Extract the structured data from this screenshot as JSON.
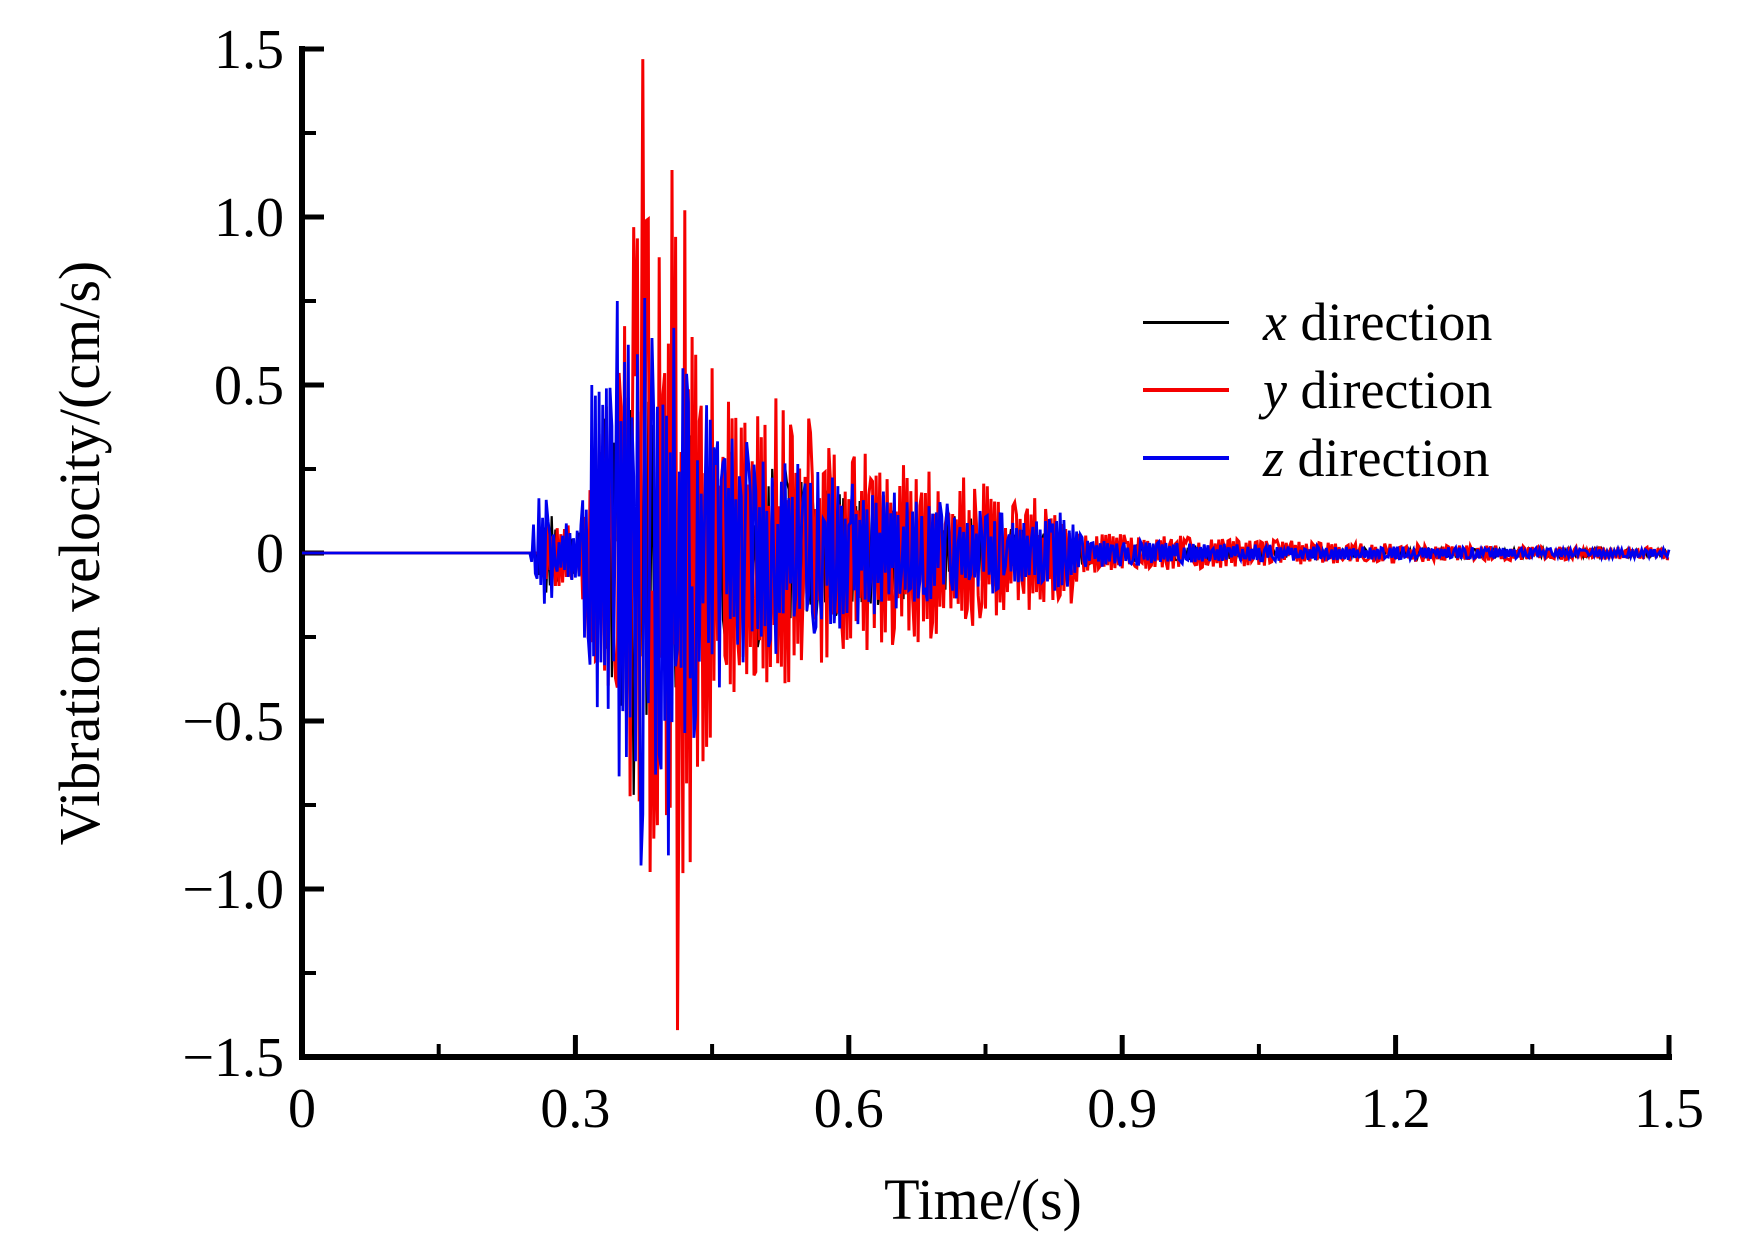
{
  "chart_data": {
    "type": "line",
    "title": "",
    "xlabel": "Time/(s)",
    "ylabel": "Vibration velocity/(cm/s)",
    "xlim": [
      0,
      1.5
    ],
    "ylim": [
      -1.5,
      1.5
    ],
    "grid": false,
    "legend_position": "upper right",
    "xticks": [
      0,
      0.3,
      0.6,
      0.9,
      1.2,
      1.5
    ],
    "xtick_labels": [
      "0",
      "0.3",
      "0.6",
      "0.9",
      "1.2",
      "1.5"
    ],
    "x_minor_ticks": [
      0.15,
      0.45,
      0.75,
      1.05,
      1.35
    ],
    "yticks": [
      1.5,
      1.0,
      0.5,
      0,
      -0.5,
      -1.0,
      -1.5
    ],
    "ytick_labels": [
      "1.5",
      "1.0",
      "0.5",
      "0",
      "−0.5",
      "−1.0",
      "−1.5"
    ],
    "y_minor_ticks": [
      1.25,
      0.75,
      0.25,
      -0.25,
      -0.75,
      -1.25
    ],
    "sample_dt": 0.002,
    "signal_description": "All three traces are zero until ~0.26 s, show a small precursor burst (~±0.15) from 0.26-0.30 s, a strong burst from ~0.315-0.46 s, a gradual decay to ~0.85 s with a small re-burst at ~0.83 s, then a very small tail out to 1.5 s.",
    "series": [
      {
        "id": "x",
        "label": "x direction",
        "legend_var": "x",
        "legend_rest": " direction",
        "color": "#000000",
        "seed": 101,
        "first_sign": 1,
        "onset_time": 0.256,
        "peaks": {
          "max": 0.45,
          "max_t": 0.347,
          "min": -0.72,
          "min_t": 0.365
        },
        "envelope": [
          [
            0,
            0
          ],
          [
            0.256,
            0
          ],
          [
            0.26,
            0.1
          ],
          [
            0.27,
            0.13
          ],
          [
            0.285,
            0.09
          ],
          [
            0.3,
            0.06
          ],
          [
            0.313,
            0.18
          ],
          [
            0.325,
            0.3
          ],
          [
            0.34,
            0.38
          ],
          [
            0.355,
            0.5
          ],
          [
            0.37,
            0.55
          ],
          [
            0.385,
            0.45
          ],
          [
            0.4,
            0.4
          ],
          [
            0.42,
            0.34
          ],
          [
            0.45,
            0.3
          ],
          [
            0.49,
            0.27
          ],
          [
            0.53,
            0.24
          ],
          [
            0.57,
            0.2
          ],
          [
            0.62,
            0.17
          ],
          [
            0.67,
            0.13
          ],
          [
            0.72,
            0.11
          ],
          [
            0.77,
            0.09
          ],
          [
            0.82,
            0.07
          ],
          [
            0.85,
            0.04
          ],
          [
            0.9,
            0.03
          ],
          [
            1.0,
            0.022
          ],
          [
            1.1,
            0.018
          ],
          [
            1.25,
            0.014
          ],
          [
            1.4,
            0.012
          ],
          [
            1.5,
            0.01
          ]
        ],
        "spikes": [
          [
            0.332,
            0.4
          ],
          [
            0.347,
            0.45
          ],
          [
            0.3565,
            -0.55
          ],
          [
            0.3645,
            -0.72
          ],
          [
            0.372,
            0.42
          ],
          [
            0.3795,
            0.45
          ],
          [
            0.388,
            -0.5
          ],
          [
            0.397,
            0.38
          ],
          [
            0.41,
            -0.4
          ],
          [
            0.425,
            0.35
          ],
          [
            0.445,
            -0.3
          ],
          [
            0.47,
            0.3
          ],
          [
            0.5,
            -0.28
          ],
          [
            0.53,
            0.26
          ]
        ]
      },
      {
        "id": "y",
        "label": "y direction",
        "legend_var": "y",
        "legend_rest": " direction",
        "color": "#f50000",
        "seed": 202,
        "first_sign": 1,
        "onset_time": 0.262,
        "peaks": {
          "max": 1.47,
          "max_t": 0.373,
          "min": -1.42,
          "min_t": 0.412
        },
        "envelope": [
          [
            0,
            0
          ],
          [
            0.262,
            0
          ],
          [
            0.266,
            0.09
          ],
          [
            0.278,
            0.12
          ],
          [
            0.292,
            0.09
          ],
          [
            0.305,
            0.07
          ],
          [
            0.315,
            0.3
          ],
          [
            0.33,
            0.42
          ],
          [
            0.345,
            0.55
          ],
          [
            0.358,
            0.85
          ],
          [
            0.368,
            1.05
          ],
          [
            0.378,
            1.05
          ],
          [
            0.39,
            0.85
          ],
          [
            0.4,
            0.95
          ],
          [
            0.415,
            1.05
          ],
          [
            0.428,
            0.85
          ],
          [
            0.44,
            0.62
          ],
          [
            0.455,
            0.55
          ],
          [
            0.47,
            0.45
          ],
          [
            0.5,
            0.42
          ],
          [
            0.53,
            0.44
          ],
          [
            0.56,
            0.38
          ],
          [
            0.6,
            0.3
          ],
          [
            0.64,
            0.29
          ],
          [
            0.68,
            0.27
          ],
          [
            0.72,
            0.24
          ],
          [
            0.76,
            0.2
          ],
          [
            0.8,
            0.17
          ],
          [
            0.83,
            0.14
          ],
          [
            0.86,
            0.06
          ],
          [
            0.92,
            0.055
          ],
          [
            0.98,
            0.05
          ],
          [
            1.05,
            0.04
          ],
          [
            1.15,
            0.03
          ],
          [
            1.25,
            0.025
          ],
          [
            1.4,
            0.02
          ],
          [
            1.5,
            0.018
          ]
        ],
        "spikes": [
          [
            0.363,
            0.97
          ],
          [
            0.373,
            1.47
          ],
          [
            0.377,
            0.99
          ],
          [
            0.385,
            -0.85
          ],
          [
            0.391,
            0.88
          ],
          [
            0.399,
            -0.78
          ],
          [
            0.4055,
            1.14
          ],
          [
            0.412,
            -1.42
          ],
          [
            0.42,
            1.02
          ],
          [
            0.4265,
            -0.92
          ],
          [
            0.431,
            0.59
          ],
          [
            0.44,
            -0.62
          ],
          [
            0.449,
            0.55
          ],
          [
            0.468,
            0.45
          ],
          [
            0.52,
            0.46
          ],
          [
            0.555,
            0.4
          ],
          [
            0.843,
            -0.15
          ]
        ]
      },
      {
        "id": "z",
        "label": "z direction",
        "legend_var": "z",
        "legend_rest": " direction",
        "color": "#0000ee",
        "seed": 303,
        "first_sign": 1,
        "onset_time": 0.251,
        "peaks": {
          "max": 0.75,
          "max_t": 0.346,
          "min": -0.93,
          "min_t": 0.371
        },
        "envelope": [
          [
            0,
            0
          ],
          [
            0.251,
            0
          ],
          [
            0.255,
            0.12
          ],
          [
            0.263,
            0.19
          ],
          [
            0.275,
            0.13
          ],
          [
            0.29,
            0.09
          ],
          [
            0.302,
            0.08
          ],
          [
            0.312,
            0.3
          ],
          [
            0.32,
            0.48
          ],
          [
            0.335,
            0.5
          ],
          [
            0.348,
            0.7
          ],
          [
            0.36,
            0.58
          ],
          [
            0.372,
            0.85
          ],
          [
            0.385,
            0.65
          ],
          [
            0.4,
            0.78
          ],
          [
            0.413,
            0.62
          ],
          [
            0.428,
            0.52
          ],
          [
            0.445,
            0.42
          ],
          [
            0.465,
            0.36
          ],
          [
            0.5,
            0.31
          ],
          [
            0.54,
            0.27
          ],
          [
            0.58,
            0.24
          ],
          [
            0.62,
            0.21
          ],
          [
            0.66,
            0.17
          ],
          [
            0.71,
            0.15
          ],
          [
            0.76,
            0.12
          ],
          [
            0.81,
            0.1
          ],
          [
            0.835,
            0.12
          ],
          [
            0.86,
            0.045
          ],
          [
            0.93,
            0.035
          ],
          [
            1.0,
            0.028
          ],
          [
            1.1,
            0.022
          ],
          [
            1.25,
            0.018
          ],
          [
            1.4,
            0.014
          ],
          [
            1.5,
            0.012
          ]
        ],
        "spikes": [
          [
            0.318,
            0.5
          ],
          [
            0.3265,
            0.48
          ],
          [
            0.333,
            0.49
          ],
          [
            0.346,
            0.75
          ],
          [
            0.3585,
            0.62
          ],
          [
            0.3655,
            -0.62
          ],
          [
            0.371,
            -0.93
          ],
          [
            0.383,
            0.64
          ],
          [
            0.392,
            -0.6
          ],
          [
            0.401,
            -0.9
          ],
          [
            0.409,
            0.67
          ],
          [
            0.418,
            0.55
          ],
          [
            0.4295,
            -0.55
          ],
          [
            0.443,
            0.44
          ],
          [
            0.457,
            -0.4
          ],
          [
            0.487,
            0.33
          ],
          [
            0.52,
            -0.3
          ],
          [
            0.832,
            0.12
          ],
          [
            0.84,
            -0.1
          ]
        ]
      }
    ]
  },
  "axes": {
    "x": {
      "title": "Time/(s)"
    },
    "y": {
      "title": "Vibration velocity/(cm/s)"
    }
  }
}
